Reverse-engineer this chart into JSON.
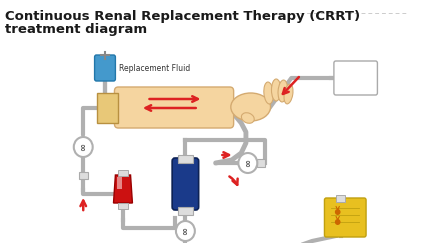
{
  "title_line1": "Continuous Renal Replacement Therapy (CRRT)",
  "title_line2": "treatment diagram",
  "title_fontsize": 9.5,
  "title_color": "#1a1a1a",
  "bg_color": "#ffffff",
  "label_replacement_fluid": "Replacement Fluid",
  "colors": {
    "tube_gray": "#b0b0b0",
    "fluid_blue": "#4499cc",
    "filter_blue": "#1a3a8a",
    "skin_tone": "#f5d5a0",
    "skin_edge": "#d4aa70",
    "red_blood": "#cc1111",
    "yellow_fluid": "#e8c020",
    "yellow_edge": "#c0a010",
    "arrow_red": "#dd2222",
    "header_line": "#cccccc",
    "clamp_gray": "#999999",
    "connector": "#dddddd",
    "connector_edge": "#aaaaaa",
    "box_edge": "#aaaaaa",
    "white": "#ffffff"
  }
}
